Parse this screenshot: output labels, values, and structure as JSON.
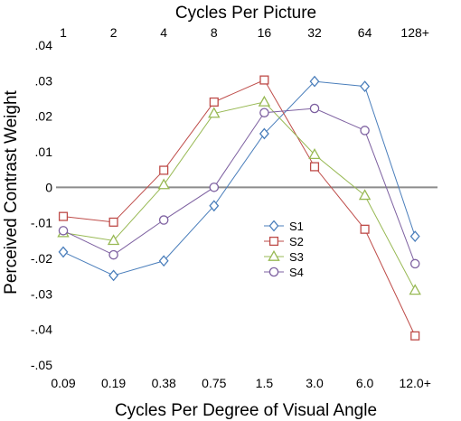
{
  "chart_data": {
    "type": "line",
    "top_axis_title": "Cycles Per Picture",
    "top_tick_labels": [
      "1",
      "2",
      "4",
      "8",
      "16",
      "32",
      "64",
      "128+"
    ],
    "xlabel": "Cycles Per Degree of Visual Angle",
    "categories": [
      "0.09",
      "0.19",
      "0.38",
      "0.75",
      "1.5",
      "3.0",
      "6.0",
      "12.0+"
    ],
    "ylabel": "Perceived Contrast Weight",
    "ylim": [
      -0.05,
      0.04
    ],
    "yticks": [
      -0.05,
      -0.04,
      -0.03,
      -0.02,
      -0.01,
      0,
      0.01,
      0.02,
      0.03,
      0.04
    ],
    "ytick_labels": [
      "-.05",
      "-.04",
      "-.03",
      "-.02",
      "-.01",
      "0",
      ".01",
      ".02",
      ".03",
      ".04"
    ],
    "zero_line": true,
    "grid": false,
    "legend_placement": "center",
    "series": [
      {
        "name": "S1",
        "color": "#4a7ebb",
        "marker": "diamond",
        "values": [
          -0.0182,
          -0.0248,
          -0.0207,
          -0.0052,
          0.0151,
          0.0298,
          0.0284,
          -0.0138
        ]
      },
      {
        "name": "S2",
        "color": "#be4b48",
        "marker": "square",
        "values": [
          -0.0082,
          -0.0098,
          0.0048,
          0.024,
          0.0302,
          0.0058,
          -0.0118,
          -0.0418
        ]
      },
      {
        "name": "S3",
        "color": "#98b954",
        "marker": "triangle",
        "values": [
          -0.0128,
          -0.015,
          0.0007,
          0.0208,
          0.024,
          0.0092,
          -0.0023,
          -0.029
        ]
      },
      {
        "name": "S4",
        "color": "#7d60a0",
        "marker": "circle",
        "values": [
          -0.0122,
          -0.019,
          -0.0092,
          0.0,
          0.021,
          0.0222,
          0.016,
          -0.0215
        ]
      }
    ]
  }
}
